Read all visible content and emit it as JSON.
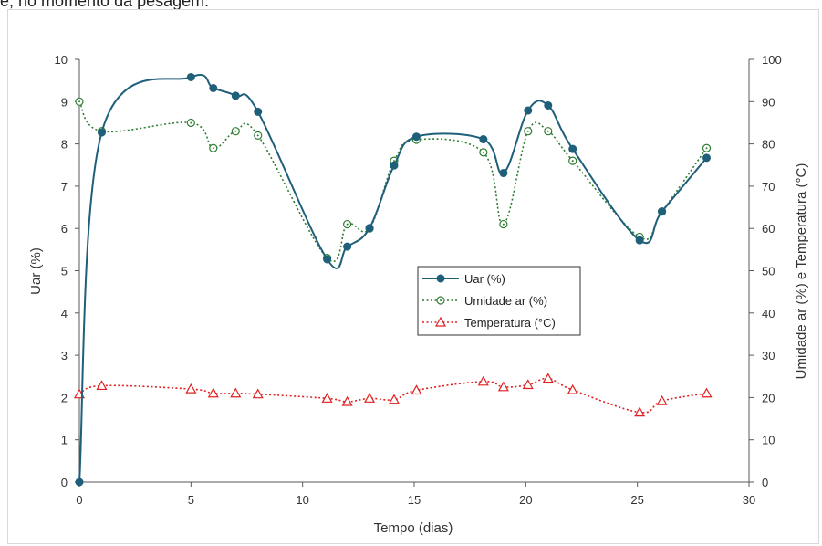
{
  "caption": "e, no momento da pesagem.",
  "colors": {
    "uar": "#1f5f7a",
    "umidade": "#2e7d32",
    "temperatura": "#e02020",
    "axis": "#595959"
  },
  "chart_data": {
    "type": "line",
    "title": "",
    "xlabel": "Tempo (dias)",
    "ylabel": "Uar (%)",
    "y2label": "Umidade ar (%) e Temperatura (°C)",
    "xlim": [
      0,
      30
    ],
    "ylim": [
      0,
      10
    ],
    "y2lim": [
      0,
      100
    ],
    "x_ticks": [
      "0",
      "5",
      "10",
      "15",
      "20",
      "25",
      "30"
    ],
    "y_ticks": [
      "0",
      "1",
      "2",
      "3",
      "4",
      "5",
      "6",
      "7",
      "8",
      "9",
      "10"
    ],
    "y2_ticks": [
      "0",
      "10",
      "20",
      "30",
      "40",
      "50",
      "60",
      "70",
      "80",
      "90",
      "100"
    ],
    "grid": false,
    "legend_position": "center-right",
    "series": [
      {
        "name": "Uar (%)",
        "axis": "left",
        "style": "solid-smooth",
        "marker": "filled-circle",
        "color_key": "uar",
        "x": [
          0,
          1,
          5,
          6,
          7,
          8,
          11.1,
          12,
          13,
          14.1,
          15.1,
          18.1,
          19,
          20.1,
          21,
          22.1,
          25.1,
          26.1,
          28.1
        ],
        "y": [
          0,
          8.27,
          9.58,
          9.32,
          9.14,
          8.76,
          5.27,
          5.57,
          6.01,
          7.49,
          8.17,
          8.11,
          7.31,
          8.79,
          8.91,
          7.88,
          5.72,
          6.4,
          7.67
        ]
      },
      {
        "name": "Umidade ar (%)",
        "axis": "right",
        "style": "dotted-smooth",
        "marker": "open-circle",
        "color_key": "umidade",
        "x": [
          0,
          1,
          5,
          6,
          7,
          8,
          11.1,
          12,
          13,
          14.1,
          15.1,
          18.1,
          19,
          20.1,
          21,
          22.1,
          25.1,
          26.1,
          28.1
        ],
        "y": [
          90,
          83,
          85,
          79,
          83,
          82,
          53,
          61,
          60,
          76,
          81,
          78,
          61,
          83,
          83,
          76,
          58,
          64,
          79
        ]
      },
      {
        "name": "Temperatura (°C)",
        "axis": "right",
        "style": "dotted-smooth",
        "marker": "open-triangle",
        "color_key": "temperatura",
        "x": [
          0,
          1,
          5,
          6,
          7,
          8,
          11.1,
          12,
          13,
          14.1,
          15.1,
          18.1,
          19,
          20.1,
          21,
          22.1,
          25.1,
          26.1,
          28.1
        ],
        "y": [
          20.8,
          22.8,
          22.0,
          21.0,
          21.0,
          20.8,
          19.8,
          19.0,
          19.8,
          19.5,
          21.7,
          23.8,
          22.5,
          23.0,
          24.5,
          21.8,
          16.5,
          19.2,
          21.0
        ]
      }
    ]
  }
}
